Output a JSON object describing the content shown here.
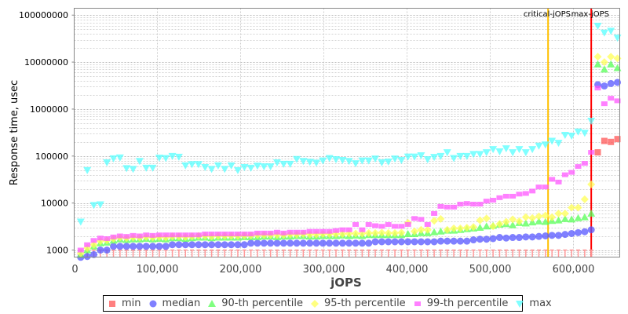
{
  "chart_data": {
    "type": "scatter",
    "xlabel": "jOPS",
    "ylabel": "Response time, usec",
    "xlim": [
      0,
      656000
    ],
    "ylim": [
      708,
      140000000
    ],
    "yscale": "log",
    "grid": true,
    "legend_position": "bottom",
    "x_ticks": [
      {
        "value": 0,
        "label": "0"
      },
      {
        "value": 100000,
        "label": "100,000"
      },
      {
        "value": 200000,
        "label": "200,000"
      },
      {
        "value": 300000,
        "label": "300,000"
      },
      {
        "value": 400000,
        "label": "400,000"
      },
      {
        "value": 500000,
        "label": "500,000"
      },
      {
        "value": 600000,
        "label": "600,000"
      }
    ],
    "y_ticks": [
      {
        "value": 1000,
        "label": "1000"
      },
      {
        "value": 10000,
        "label": "10000"
      },
      {
        "value": 100000,
        "label": "100000"
      },
      {
        "value": 1000000,
        "label": "1000000"
      },
      {
        "value": 10000000,
        "label": "10000000"
      },
      {
        "value": 100000000,
        "label": "100000000"
      }
    ],
    "vertical_lines": [
      {
        "label": "critical-jOPS",
        "x": 569800,
        "color": "#ffc000"
      },
      {
        "label": "max-jOPS",
        "x": 621700,
        "color": "#ff0000"
      }
    ],
    "x": [
      7870,
      15740,
      23610,
      31480,
      39350,
      47220,
      55090,
      62960,
      70830,
      78700,
      86570,
      94440,
      102310,
      110180,
      118050,
      125920,
      133790,
      141660,
      149530,
      157400,
      165270,
      173140,
      181010,
      188880,
      196750,
      204620,
      212490,
      220360,
      228230,
      236100,
      243970,
      251840,
      259710,
      267580,
      275450,
      283320,
      291190,
      299060,
      306930,
      314800,
      322670,
      330540,
      338410,
      346280,
      354150,
      362020,
      369890,
      377760,
      385630,
      393500,
      401370,
      409240,
      417110,
      424980,
      432850,
      440720,
      448590,
      456460,
      464330,
      472200,
      480070,
      487940,
      495810,
      503680,
      511550,
      519420,
      527290,
      535160,
      543030,
      550900,
      558770,
      566640,
      574510,
      582380,
      590250,
      598120,
      605990,
      613860,
      621730,
      629600,
      637470,
      645340,
      653210
    ],
    "series": [
      {
        "name": "min",
        "color": "#ff5555",
        "marker": "square",
        "values": [
          1000,
          1000,
          1000,
          1000,
          1000,
          1000,
          1000,
          1000,
          1000,
          1000,
          1000,
          1000,
          1000,
          1000,
          1000,
          1000,
          1000,
          1000,
          1000,
          1000,
          1000,
          1000,
          1000,
          1000,
          1000,
          1000,
          1000,
          1000,
          1000,
          1000,
          1000,
          1000,
          1000,
          1000,
          1000,
          1000,
          1000,
          1000,
          1000,
          1000,
          1000,
          1000,
          1000,
          1000,
          1000,
          1000,
          1000,
          1000,
          1000,
          1000,
          1000,
          1000,
          1000,
          1000,
          1000,
          1000,
          1000,
          1000,
          1000,
          1000,
          1000,
          1000,
          1000,
          1000,
          1000,
          1000,
          1000,
          1000,
          1000,
          1000,
          1000,
          1000,
          1000,
          1000,
          1000,
          1000,
          1000,
          1000,
          1000,
          120000,
          210000,
          200000,
          230000
        ]
      },
      {
        "name": "median",
        "color": "#5555ff",
        "marker": "circle",
        "values": [
          700,
          730,
          800,
          1000,
          1000,
          1200,
          1200,
          1200,
          1200,
          1200,
          1200,
          1200,
          1200,
          1200,
          1300,
          1300,
          1300,
          1300,
          1300,
          1300,
          1300,
          1300,
          1300,
          1300,
          1300,
          1300,
          1400,
          1400,
          1400,
          1400,
          1400,
          1400,
          1400,
          1400,
          1400,
          1400,
          1400,
          1400,
          1400,
          1400,
          1400,
          1400,
          1400,
          1400,
          1400,
          1500,
          1500,
          1500,
          1500,
          1500,
          1500,
          1500,
          1500,
          1500,
          1500,
          1550,
          1550,
          1550,
          1550,
          1550,
          1650,
          1700,
          1700,
          1750,
          1850,
          1800,
          1850,
          1850,
          1900,
          1900,
          1950,
          2000,
          2050,
          2050,
          2150,
          2250,
          2350,
          2450,
          2700,
          3300000,
          3100000,
          3500000,
          3700000
        ]
      },
      {
        "name": "90-th percentile",
        "color": "#55ff55",
        "marker": "triangle-up",
        "values": [
          800,
          1000,
          1200,
          1400,
          1450,
          1600,
          1700,
          1650,
          1700,
          1700,
          1750,
          1700,
          1750,
          1700,
          1800,
          1800,
          1750,
          1800,
          1850,
          1850,
          1800,
          1850,
          1850,
          1850,
          1850,
          1900,
          1900,
          1900,
          1950,
          1950,
          1900,
          1950,
          1950,
          2000,
          2000,
          1950,
          1950,
          2000,
          2000,
          2000,
          2050,
          2000,
          2050,
          2000,
          2100,
          2100,
          2100,
          2100,
          2100,
          2100,
          2200,
          2200,
          2300,
          2300,
          2400,
          2500,
          2600,
          2600,
          2700,
          2800,
          2900,
          3000,
          3200,
          3300,
          3500,
          3600,
          3400,
          3800,
          3700,
          3900,
          4100,
          4000,
          4200,
          4300,
          4600,
          4500,
          4800,
          5000,
          6000,
          9000000,
          7000000,
          9000000,
          7500000
        ]
      },
      {
        "name": "95-th percentile",
        "color": "#ffff55",
        "marker": "diamond",
        "values": [
          850,
          1100,
          1300,
          1550,
          1600,
          1750,
          1850,
          1800,
          1850,
          1850,
          1900,
          1850,
          1900,
          1850,
          1950,
          1950,
          1900,
          1950,
          2000,
          2000,
          1950,
          2000,
          2000,
          2000,
          2000,
          2050,
          2050,
          2100,
          2100,
          2100,
          2100,
          2100,
          2150,
          2150,
          2200,
          2150,
          2150,
          2200,
          2200,
          2200,
          2200,
          2250,
          2250,
          2250,
          2300,
          2300,
          2350,
          2300,
          2300,
          2350,
          3800,
          2500,
          2700,
          2700,
          4200,
          4600,
          2700,
          2900,
          2900,
          3000,
          3100,
          4300,
          4700,
          3200,
          3600,
          4000,
          4500,
          4100,
          5000,
          4800,
          5200,
          5400,
          5000,
          6000,
          6000,
          8000,
          8000,
          12000,
          25000,
          13000000,
          10000000,
          13000000,
          12000000
        ]
      },
      {
        "name": "99-th percentile",
        "color": "#ff55ff",
        "marker": "rect",
        "values": [
          1000,
          1300,
          1600,
          1800,
          1750,
          1900,
          2000,
          1950,
          2050,
          2000,
          2100,
          2050,
          2100,
          2100,
          2100,
          2100,
          2100,
          2100,
          2100,
          2200,
          2200,
          2200,
          2200,
          2200,
          2200,
          2200,
          2200,
          2300,
          2300,
          2300,
          2400,
          2300,
          2400,
          2400,
          2400,
          2500,
          2500,
          2500,
          2500,
          2600,
          2700,
          2700,
          3500,
          2700,
          3500,
          3300,
          3200,
          3500,
          3200,
          3200,
          3500,
          4700,
          4500,
          3500,
          6000,
          8500,
          8200,
          8200,
          9500,
          9800,
          9500,
          9500,
          11000,
          11500,
          13000,
          14000,
          14000,
          15500,
          16000,
          18000,
          22000,
          22000,
          32000,
          28000,
          40000,
          45000,
          60000,
          70000,
          120000,
          2800000,
          1300000,
          1700000,
          1500000
        ]
      },
      {
        "name": "max",
        "color": "#55ffff",
        "marker": "triangle-down",
        "values": [
          4000,
          50000,
          9000,
          9300,
          73000,
          89000,
          93000,
          55000,
          53000,
          78000,
          56000,
          56000,
          92000,
          90000,
          100000,
          96000,
          63000,
          67000,
          67000,
          58000,
          53000,
          63000,
          53000,
          63000,
          50000,
          58000,
          56000,
          62000,
          60000,
          60000,
          73000,
          68000,
          68000,
          86000,
          78000,
          75000,
          72000,
          80000,
          90000,
          85000,
          82000,
          78000,
          70000,
          80000,
          80000,
          88000,
          73000,
          76000,
          88000,
          82000,
          97000,
          97000,
          103000,
          85000,
          95000,
          100000,
          120000,
          90000,
          100000,
          100000,
          110000,
          110000,
          120000,
          140000,
          125000,
          145000,
          120000,
          140000,
          120000,
          140000,
          165000,
          175000,
          210000,
          190000,
          280000,
          270000,
          330000,
          310000,
          560000,
          59000000,
          42000000,
          46000000,
          33000000
        ]
      }
    ]
  }
}
